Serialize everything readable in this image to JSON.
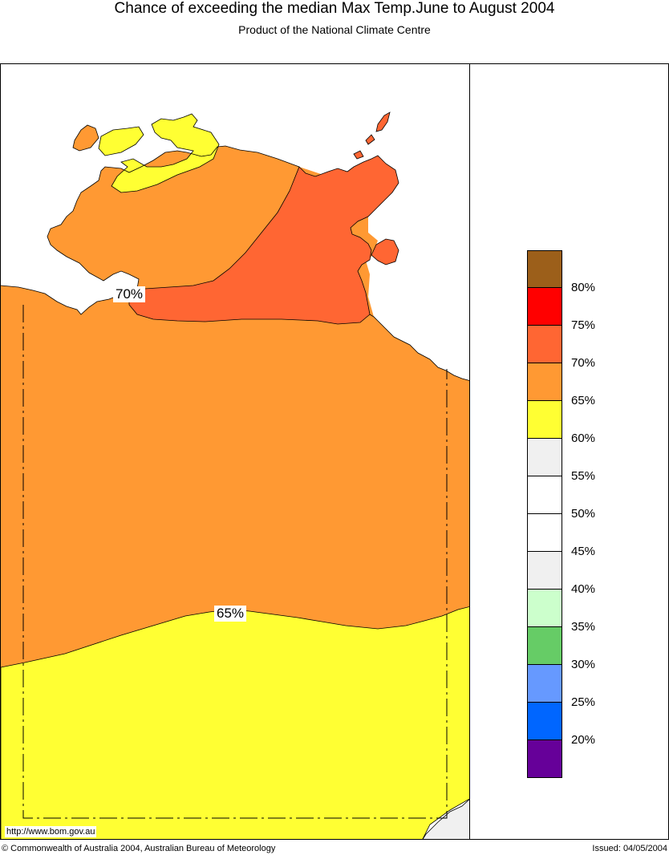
{
  "header": {
    "title": "Chance of exceeding the median Max Temp.June to August 2004",
    "subtitle": "Product of the National Climate Centre"
  },
  "map": {
    "contour_labels": [
      "70%",
      "65%"
    ],
    "url": "http://www.bom.gov.au"
  },
  "legend": {
    "colors": [
      "#9c5f1a",
      "#ff0000",
      "#ff6633",
      "#ff9933",
      "#ffff33",
      "#f0f0f0",
      "#ffffff",
      "#ffffff",
      "#f0f0f0",
      "#ccffcc",
      "#66cc66",
      "#6699ff",
      "#0066ff",
      "#660099"
    ],
    "labels": [
      "80%",
      "75%",
      "70%",
      "65%",
      "60%",
      "55%",
      "50%",
      "45%",
      "40%",
      "35%",
      "30%",
      "25%",
      "20%"
    ]
  },
  "footer": {
    "copyright": "© Commonwealth of Australia 2004, Australian Bureau of Meteorology",
    "issued": "Issued: 04/05/2004"
  }
}
